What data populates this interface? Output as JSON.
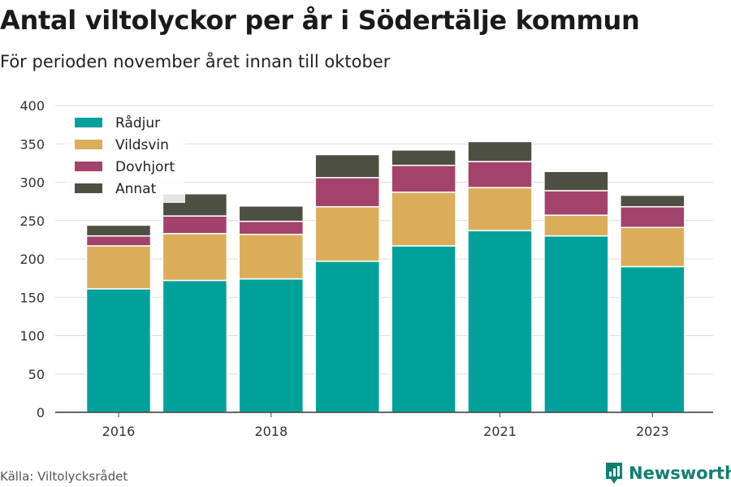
{
  "header": {
    "title": "Antal viltolyckor per år i Södertälje kommun",
    "subtitle": "För perioden november året innan till oktober"
  },
  "footer": {
    "source": "Källa: Viltolycksrådet",
    "brand": "Newsworthy"
  },
  "chart_data": {
    "type": "bar",
    "stacked": true,
    "categories": [
      "2016",
      "2017",
      "2018",
      "2019",
      "2020",
      "2021",
      "2022",
      "2023"
    ],
    "x_tick_labels": [
      "2016",
      "",
      "2018",
      "",
      "",
      "2021",
      "",
      "2023"
    ],
    "ylim": [
      0,
      400
    ],
    "yticks": [
      0,
      50,
      100,
      150,
      200,
      250,
      300,
      350,
      400
    ],
    "grid": true,
    "legend_position": "top-left",
    "series": [
      {
        "name": "Rådjur",
        "color": "#00a19a",
        "values": [
          161,
          172,
          174,
          197,
          217,
          237,
          230,
          190
        ]
      },
      {
        "name": "Vildsvin",
        "color": "#dbad5b",
        "values": [
          56,
          61,
          58,
          71,
          70,
          56,
          27,
          51
        ]
      },
      {
        "name": "Dovhjort",
        "color": "#a3436c",
        "values": [
          13,
          23,
          17,
          38,
          35,
          34,
          32,
          27
        ]
      },
      {
        "name": "Annat",
        "color": "#4d4f42",
        "values": [
          14,
          29,
          20,
          30,
          20,
          26,
          25,
          15
        ]
      }
    ]
  }
}
